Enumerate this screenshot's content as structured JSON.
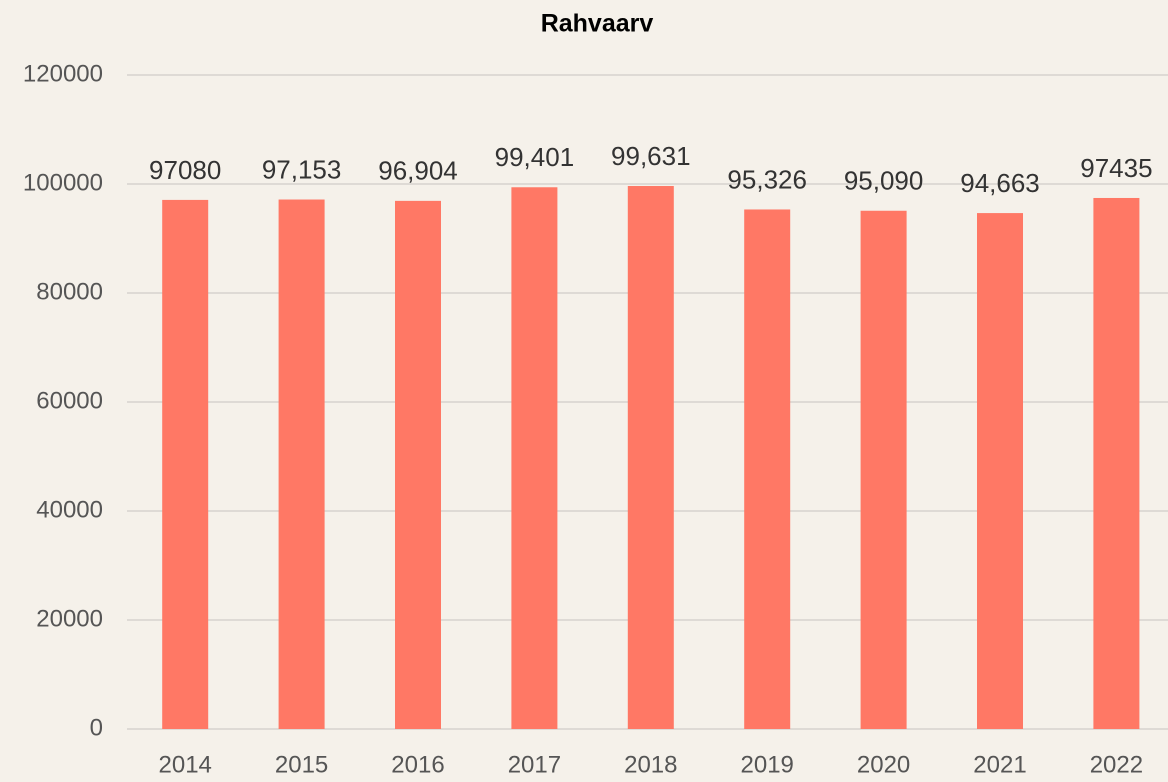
{
  "chart_data": {
    "type": "bar",
    "title": "Rahvaarv",
    "categories": [
      "2014",
      "2015",
      "2016",
      "2017",
      "2018",
      "2019",
      "2020",
      "2021",
      "2022"
    ],
    "values": [
      97080,
      97153,
      96904,
      99401,
      99631,
      95326,
      95090,
      94663,
      97435
    ],
    "value_labels": [
      "97080",
      "97,153",
      "96,904",
      "99,401",
      "99,631",
      "95,326",
      "95,090",
      "94,663",
      "97435"
    ],
    "color": "#ff7865",
    "ylim": [
      0,
      120000
    ],
    "yticks": [
      0,
      20000,
      40000,
      60000,
      80000,
      100000,
      120000
    ],
    "grid": true
  }
}
